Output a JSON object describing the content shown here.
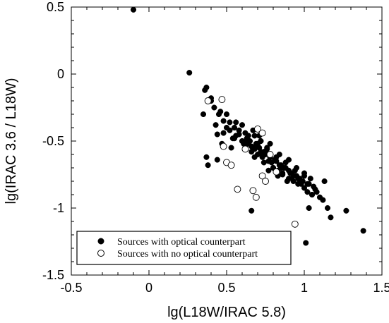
{
  "chart_data": {
    "type": "scatter",
    "xlabel": "lg(L18W/IRAC 5.8)",
    "ylabel": "lg(IRAC 3.6 / L18W)",
    "xlim": [
      -0.5,
      1.5
    ],
    "ylim": [
      -1.5,
      0.5
    ],
    "xticks": [
      "-0.5",
      "0",
      "0.5",
      "1",
      "1.5"
    ],
    "yticks": [
      "0.5",
      "0",
      "-0.5",
      "-1",
      "-1.5"
    ],
    "grid": false,
    "legend_position": "bottom-left",
    "series": [
      {
        "name": "Sources with optical counterpart",
        "marker": "filled-circle",
        "color": "#000000",
        "x": [
          -0.1,
          0.26,
          0.37,
          0.36,
          0.38,
          0.4,
          0.35,
          0.42,
          0.44,
          0.45,
          0.47,
          0.48,
          0.5,
          0.52,
          0.53,
          0.55,
          0.56,
          0.58,
          0.6,
          0.6,
          0.62,
          0.63,
          0.64,
          0.65,
          0.66,
          0.67,
          0.68,
          0.69,
          0.7,
          0.71,
          0.72,
          0.73,
          0.74,
          0.75,
          0.76,
          0.77,
          0.78,
          0.8,
          0.82,
          0.83,
          0.85,
          0.86,
          0.88,
          0.9,
          0.92,
          0.93,
          0.95,
          0.96,
          0.98,
          1.0,
          1.02,
          1.03,
          1.05,
          1.07,
          1.1,
          1.13,
          1.17,
          1.27,
          1.38,
          0.66,
          0.37,
          0.44,
          0.55,
          0.62,
          0.68,
          0.72,
          0.78,
          0.84,
          0.9,
          0.95,
          1.0,
          1.04,
          0.4,
          0.46,
          0.52,
          0.58,
          0.64,
          0.7,
          0.76,
          0.82,
          0.88,
          0.94,
          1.0,
          1.06,
          0.68,
          0.74,
          0.8,
          0.86,
          0.92,
          0.98,
          1.05,
          1.12,
          0.5,
          0.56,
          0.6,
          0.66,
          0.72,
          0.78,
          0.84,
          0.9,
          0.96,
          1.02,
          1.08,
          0.43,
          0.48,
          0.54,
          0.63,
          0.69,
          0.75,
          0.81,
          0.87,
          0.93,
          0.99,
          1.15,
          0.61,
          0.67,
          0.73,
          0.79,
          0.85,
          0.91,
          0.97,
          1.01,
          0.77,
          0.83,
          0.89,
          1.03,
          0.71
        ],
        "y": [
          0.48,
          0.01,
          -0.1,
          -0.12,
          -0.68,
          -0.2,
          -0.3,
          -0.25,
          -0.45,
          -0.3,
          -0.52,
          -0.35,
          -0.3,
          -0.42,
          -0.55,
          -0.4,
          -0.36,
          -0.45,
          -0.38,
          -0.5,
          -0.55,
          -0.48,
          -0.52,
          -0.5,
          -0.58,
          -0.42,
          -0.56,
          -0.52,
          -0.6,
          -0.55,
          -0.5,
          -0.62,
          -0.58,
          -0.6,
          -0.55,
          -0.65,
          -0.62,
          -0.7,
          -0.65,
          -0.72,
          -0.68,
          -0.75,
          -0.7,
          -0.78,
          -0.74,
          -0.8,
          -0.76,
          -0.82,
          -0.8,
          -0.85,
          -0.88,
          -0.82,
          -0.9,
          -0.86,
          -0.92,
          -0.8,
          -1.07,
          -1.02,
          -1.17,
          -1.02,
          -0.62,
          -0.64,
          -0.48,
          -0.44,
          -0.46,
          -0.5,
          -0.52,
          -0.6,
          -0.64,
          -0.7,
          -0.74,
          -0.78,
          -0.18,
          -0.28,
          -0.36,
          -0.42,
          -0.46,
          -0.52,
          -0.56,
          -0.62,
          -0.66,
          -0.72,
          -0.76,
          -0.84,
          -0.62,
          -0.66,
          -0.7,
          -0.74,
          -0.78,
          -0.82,
          -0.9,
          -0.94,
          -0.4,
          -0.46,
          -0.5,
          -0.54,
          -0.58,
          -0.62,
          -0.68,
          -0.72,
          -0.78,
          -0.82,
          -0.88,
          -0.38,
          -0.44,
          -0.48,
          -0.5,
          -0.54,
          -0.58,
          -0.64,
          -0.7,
          -0.76,
          -0.8,
          -1.0,
          -0.52,
          -0.56,
          -0.6,
          -0.66,
          -0.7,
          -0.74,
          -0.78,
          -1.26,
          -0.72,
          -0.76,
          -0.8,
          -1.0,
          -0.46
        ]
      },
      {
        "name": "Sources with no optical counterpart",
        "marker": "open-circle",
        "color": "#000000",
        "x": [
          0.38,
          0.47,
          0.48,
          0.5,
          0.53,
          0.57,
          0.62,
          0.67,
          0.69,
          0.7,
          0.73,
          0.73,
          0.75,
          0.78,
          0.82,
          0.94
        ],
        "y": [
          -0.2,
          -0.19,
          -0.54,
          -0.66,
          -0.68,
          -0.86,
          -0.56,
          -0.87,
          -0.92,
          -0.41,
          -0.44,
          -0.76,
          -0.8,
          -0.6,
          -0.73,
          -1.12
        ]
      }
    ]
  }
}
